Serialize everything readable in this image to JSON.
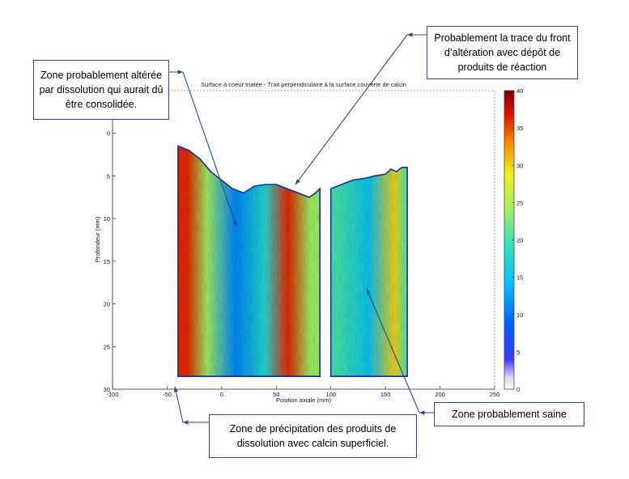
{
  "chart_data": {
    "type": "heatmap",
    "title": "Surface à coeur triatée - Trait perpendiculaire à la surface couverte de calcin",
    "xlabel": "Position axiale (mm)",
    "ylabel": "Profondeur (mm)",
    "xlim": [
      -100,
      250
    ],
    "ylim": [
      30,
      -5
    ],
    "x_ticks": [
      -100,
      -50,
      0,
      50,
      100,
      150,
      200,
      250
    ],
    "y_ticks": [
      0,
      5,
      10,
      15,
      20,
      25,
      30
    ],
    "colorbar": {
      "min": 0,
      "max": 40,
      "ticks": [
        0,
        5,
        10,
        15,
        20,
        25,
        30,
        35,
        40
      ],
      "colormap": "jet"
    },
    "grid": false,
    "segments": [
      {
        "x_range": [
          -40,
          90
        ],
        "surface_profile": [
          [
            -40,
            1.5
          ],
          [
            -30,
            2.0
          ],
          [
            -20,
            3.0
          ],
          [
            -10,
            4.5
          ],
          [
            0,
            5.5
          ],
          [
            10,
            6.5
          ],
          [
            20,
            7.0
          ],
          [
            30,
            6.2
          ],
          [
            40,
            6.0
          ],
          [
            50,
            6.0
          ],
          [
            60,
            6.5
          ],
          [
            70,
            7.0
          ],
          [
            80,
            7.5
          ],
          [
            86,
            7.0
          ],
          [
            90,
            6.5
          ]
        ],
        "bands": [
          {
            "x": [
              -40,
              -22
            ],
            "value": 36
          },
          {
            "x": [
              -22,
              -5
            ],
            "value": 24
          },
          {
            "x": [
              -5,
              30
            ],
            "value": 11
          },
          {
            "x": [
              30,
              50
            ],
            "value": 18
          },
          {
            "x": [
              50,
              72
            ],
            "value": 36
          },
          {
            "x": [
              72,
              90
            ],
            "value": 24
          }
        ]
      },
      {
        "x_range": [
          100,
          170
        ],
        "surface_profile": [
          [
            100,
            6.5
          ],
          [
            110,
            6.0
          ],
          [
            120,
            5.5
          ],
          [
            130,
            5.3
          ],
          [
            140,
            5.0
          ],
          [
            150,
            4.8
          ],
          [
            155,
            4.2
          ],
          [
            160,
            4.5
          ],
          [
            165,
            4.0
          ],
          [
            170,
            4.0
          ]
        ],
        "bands": [
          {
            "x": [
              100,
              115
            ],
            "value": 20
          },
          {
            "x": [
              115,
              155
            ],
            "value": 15
          },
          {
            "x": [
              155,
              163
            ],
            "value": 30
          },
          {
            "x": [
              163,
              170
            ],
            "value": 22
          }
        ]
      }
    ]
  },
  "annotations": [
    {
      "id": "altered-zone",
      "text": "Zone probablement altérée par dissolution qui aurait dû être consolidée."
    },
    {
      "id": "front-trace",
      "text": "Probablement la trace du front d’altération avec dépôt de produits de réaction"
    },
    {
      "id": "precipitation-zone",
      "text": "Zone de précipitation des produits de dissolution avec calcin superficiel."
    },
    {
      "id": "healthy-zone",
      "text": "Zone probablement saine"
    }
  ],
  "colors": {
    "callout_border": "#2e4a8a",
    "arrow": "#2e4a8a"
  }
}
